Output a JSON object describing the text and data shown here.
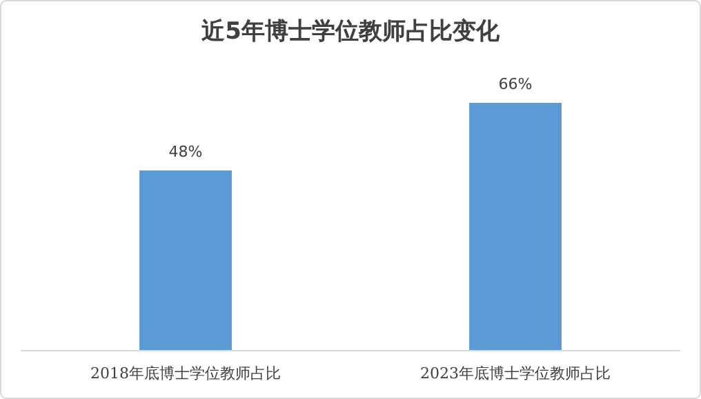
{
  "chart_data": {
    "type": "bar",
    "title": "近5年博士学位教师占比变化",
    "categories": [
      "2018年底博士学位教师占比",
      "2023年底博士学位教师占比"
    ],
    "values": [
      48,
      66
    ],
    "color": "#5b9bd5",
    "value_labels": [
      "48%",
      "66%"
    ]
  }
}
